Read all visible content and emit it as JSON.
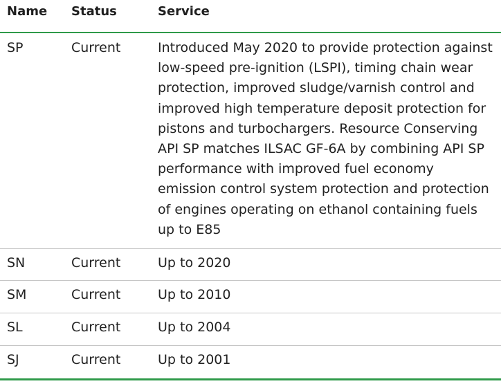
{
  "table": {
    "headers": {
      "name": "Name",
      "status": "Status",
      "service": "Service"
    },
    "rows": [
      {
        "name": "SP",
        "status": "Current",
        "service": "Introduced May 2020 to provide protection against low-speed pre-ignition (LSPI), timing chain wear protection, improved sludge/varnish control and improved high temperature deposit protection for pistons and turbochargers. Resource Conserving API SP matches ILSAC GF-6A by combining API SP performance with improved fuel economy emission control system protection and protection of engines operating on ethanol containing fuels up to E85"
      },
      {
        "name": "SN",
        "status": "Current",
        "service": "Up to 2020"
      },
      {
        "name": "SM",
        "status": "Current",
        "service": "Up to 2010"
      },
      {
        "name": "SL",
        "status": "Current",
        "service": "Up to 2004"
      },
      {
        "name": "SJ",
        "status": "Current",
        "service": "Up to 2001"
      }
    ]
  }
}
